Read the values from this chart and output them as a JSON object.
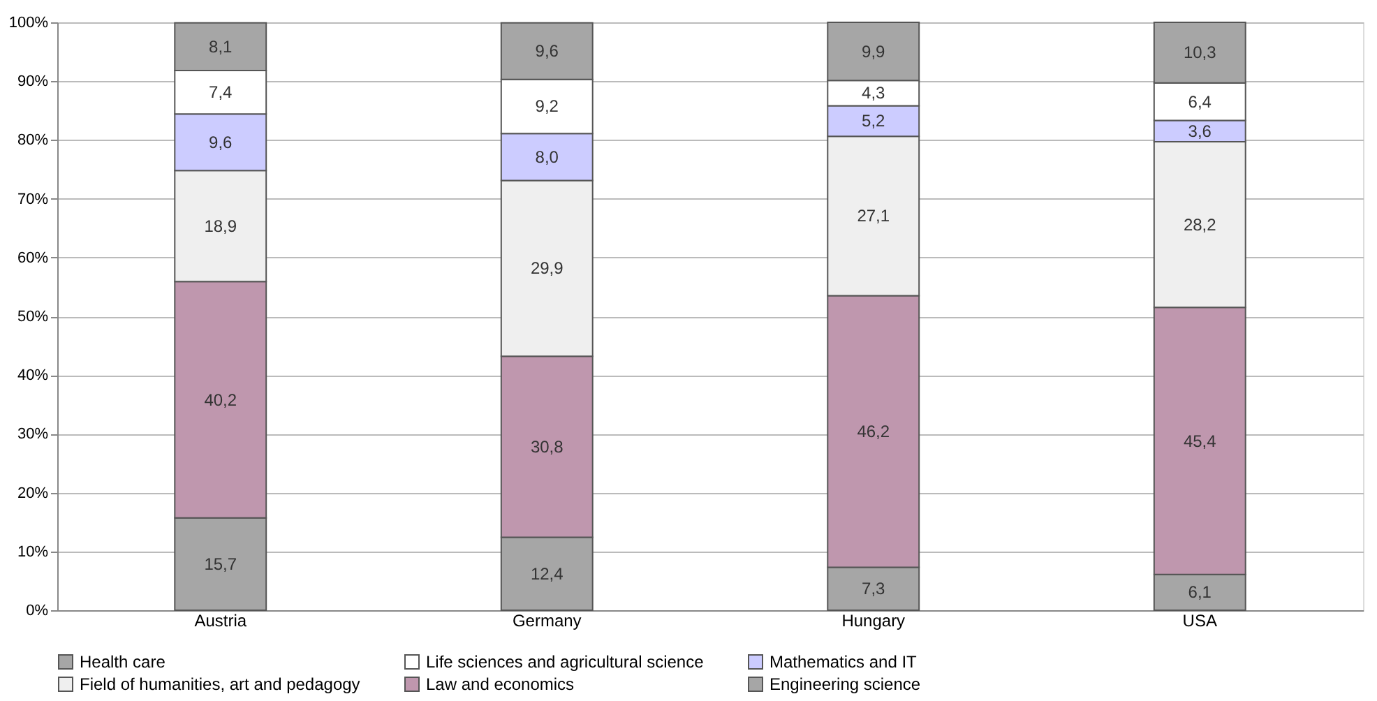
{
  "chart_data": {
    "type": "bar",
    "stacked": true,
    "categories": [
      "Austria",
      "Germany",
      "Hungary",
      "USA"
    ],
    "series": [
      {
        "name": "Engineering science",
        "color": "#a6a6a6",
        "values": [
          15.7,
          12.4,
          7.3,
          6.1
        ],
        "value_labels": [
          "15,7",
          "12,4",
          "7,3",
          "6,1"
        ]
      },
      {
        "name": "Law and economics",
        "color": "#bf97ae",
        "values": [
          40.2,
          30.8,
          46.2,
          45.4
        ],
        "value_labels": [
          "40,2",
          "30,8",
          "46,2",
          "45,4"
        ]
      },
      {
        "name": "Field of humanities, art and pedagogy",
        "color": "#efefef",
        "values": [
          18.9,
          29.9,
          27.1,
          28.2
        ],
        "value_labels": [
          "18,9",
          "29,9",
          "27,1",
          "28,2"
        ]
      },
      {
        "name": "Mathematics and IT",
        "color": "#ccccff",
        "values": [
          9.6,
          8.0,
          5.2,
          3.6
        ],
        "value_labels": [
          "9,6",
          "8,0",
          "5,2",
          "3,6"
        ]
      },
      {
        "name": "Life sciences and agricultural science",
        "color": "#ffffff",
        "values": [
          7.4,
          9.2,
          4.3,
          6.4
        ],
        "value_labels": [
          "7,4",
          "9,2",
          "4,3",
          "6,4"
        ]
      },
      {
        "name": "Health care",
        "color": "#a6a6a6",
        "values": [
          8.1,
          9.6,
          9.9,
          10.3
        ],
        "value_labels": [
          "8,1",
          "9,6",
          "9,9",
          "10,3"
        ]
      }
    ],
    "ylim": [
      0,
      100
    ],
    "yticks": [
      {
        "value": 0,
        "label": "0%"
      },
      {
        "value": 10,
        "label": "10%"
      },
      {
        "value": 20,
        "label": "20%"
      },
      {
        "value": 30,
        "label": "30%"
      },
      {
        "value": 40,
        "label": "40%"
      },
      {
        "value": 50,
        "label": "50%"
      },
      {
        "value": 60,
        "label": "60%"
      },
      {
        "value": 70,
        "label": "70%"
      },
      {
        "value": 80,
        "label": "80%"
      },
      {
        "value": 90,
        "label": "90%"
      },
      {
        "value": 100,
        "label": "100%"
      }
    ],
    "grid": "y",
    "legend": "bottom"
  }
}
